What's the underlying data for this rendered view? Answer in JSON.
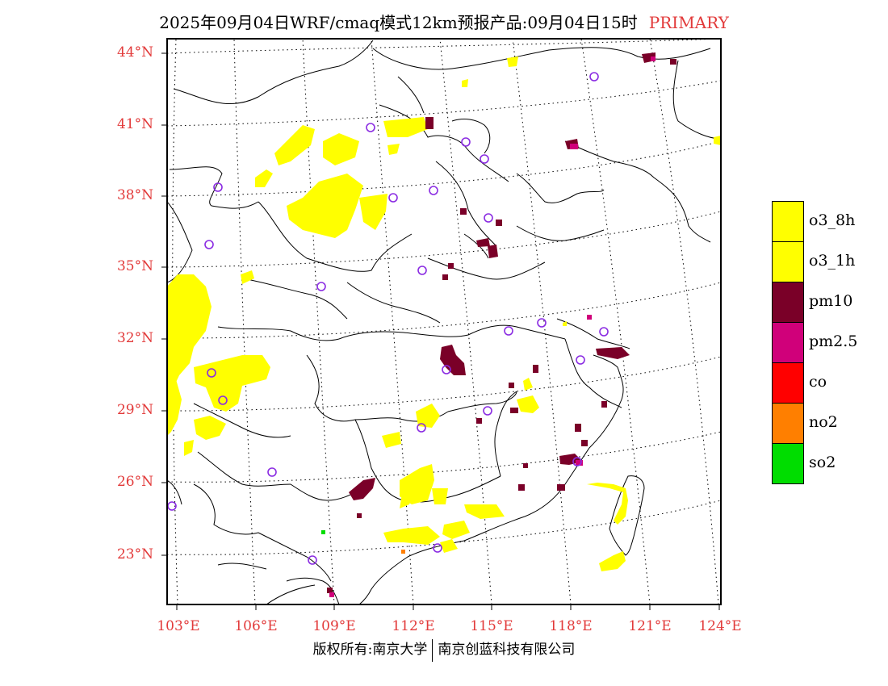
{
  "title": {
    "main": "2025年09月04日WRF/cmaq模式12km预报产品:09月04日15时",
    "tag": "PRIMARY"
  },
  "map": {
    "lat_labels": [
      "44°N",
      "41°N",
      "38°N",
      "35°N",
      "32°N",
      "29°N",
      "26°N",
      "23°N"
    ],
    "lon_labels": [
      "103°E",
      "106°E",
      "109°E",
      "112°E",
      "115°E",
      "118°E",
      "121°E",
      "124°E"
    ]
  },
  "legend": [
    {
      "label": "o3_8h",
      "color": "#ffff00"
    },
    {
      "label": "o3_1h",
      "color": "#ffff00"
    },
    {
      "label": "pm10",
      "color": "#7a0028"
    },
    {
      "label": "pm2.5",
      "color": "#d0007a"
    },
    {
      "label": "co",
      "color": "#ff0000"
    },
    {
      "label": "no2",
      "color": "#ff7f00"
    },
    {
      "label": "so2",
      "color": "#00dd00"
    }
  ],
  "colors": {
    "station_marker": "#8a2be2",
    "label_red": "#e23a3a"
  },
  "footer": {
    "left": "版权所有:南京大学",
    "right": "南京创蓝科技有限公司"
  }
}
